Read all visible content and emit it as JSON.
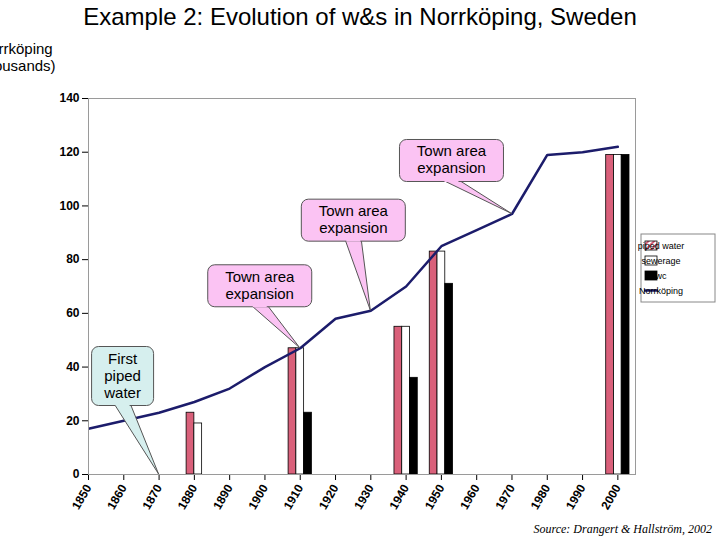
{
  "chart_data": {
    "type": "bar",
    "title": "Example 2: Evolution of w&s in Norrköping, Sweden",
    "ylabel": "Norrköping (thousands)",
    "caption": "Source: Drangert & Hallström, 2002",
    "xlim": [
      1850,
      2005
    ],
    "xticks": [
      1850,
      1860,
      1870,
      1880,
      1890,
      1900,
      1910,
      1920,
      1930,
      1940,
      1950,
      1960,
      1970,
      1980,
      1990,
      2000
    ],
    "ylim": [
      0,
      140
    ],
    "yticks": [
      0,
      20,
      40,
      60,
      80,
      100,
      120,
      140
    ],
    "grid": false,
    "legend": "right",
    "series": [
      {
        "name": "piped water",
        "type": "bar",
        "color": "#d9607a",
        "x": [
          1880,
          1910,
          1940,
          1950,
          2000
        ],
        "values": [
          23,
          47,
          55,
          83,
          119
        ]
      },
      {
        "name": "sewerage",
        "type": "bar",
        "color": "#ffffff",
        "x": [
          1880,
          1910,
          1940,
          1950,
          2000
        ],
        "values": [
          19,
          47,
          55,
          83,
          119
        ]
      },
      {
        "name": "wc",
        "type": "bar",
        "color": "#000000",
        "x": [
          1880,
          1910,
          1940,
          1950,
          2000
        ],
        "values": [
          null,
          23,
          36,
          71,
          119
        ]
      },
      {
        "name": "Norrköping",
        "type": "line",
        "color": "#1c1c6b",
        "x": [
          1850,
          1860,
          1870,
          1880,
          1890,
          1900,
          1910,
          1920,
          1930,
          1940,
          1950,
          1960,
          1970,
          1980,
          1990,
          2000
        ],
        "values": [
          17,
          20,
          23,
          27,
          32,
          40,
          47,
          58,
          61,
          70,
          85,
          91,
          97,
          119,
          120,
          122
        ]
      }
    ],
    "annotations": [
      {
        "text": "First piped water",
        "x": 1870,
        "y": 0,
        "color": "#d6efee"
      },
      {
        "text": "Town area expansion",
        "x": 1910,
        "y": 47,
        "color": "#fbc3f3"
      },
      {
        "text": "Town area expansion",
        "x": 1930,
        "y": 61,
        "color": "#fbc3f3"
      },
      {
        "text": "Town area expansion",
        "x": 1970,
        "y": 97,
        "color": "#fbc3f3"
      }
    ]
  }
}
